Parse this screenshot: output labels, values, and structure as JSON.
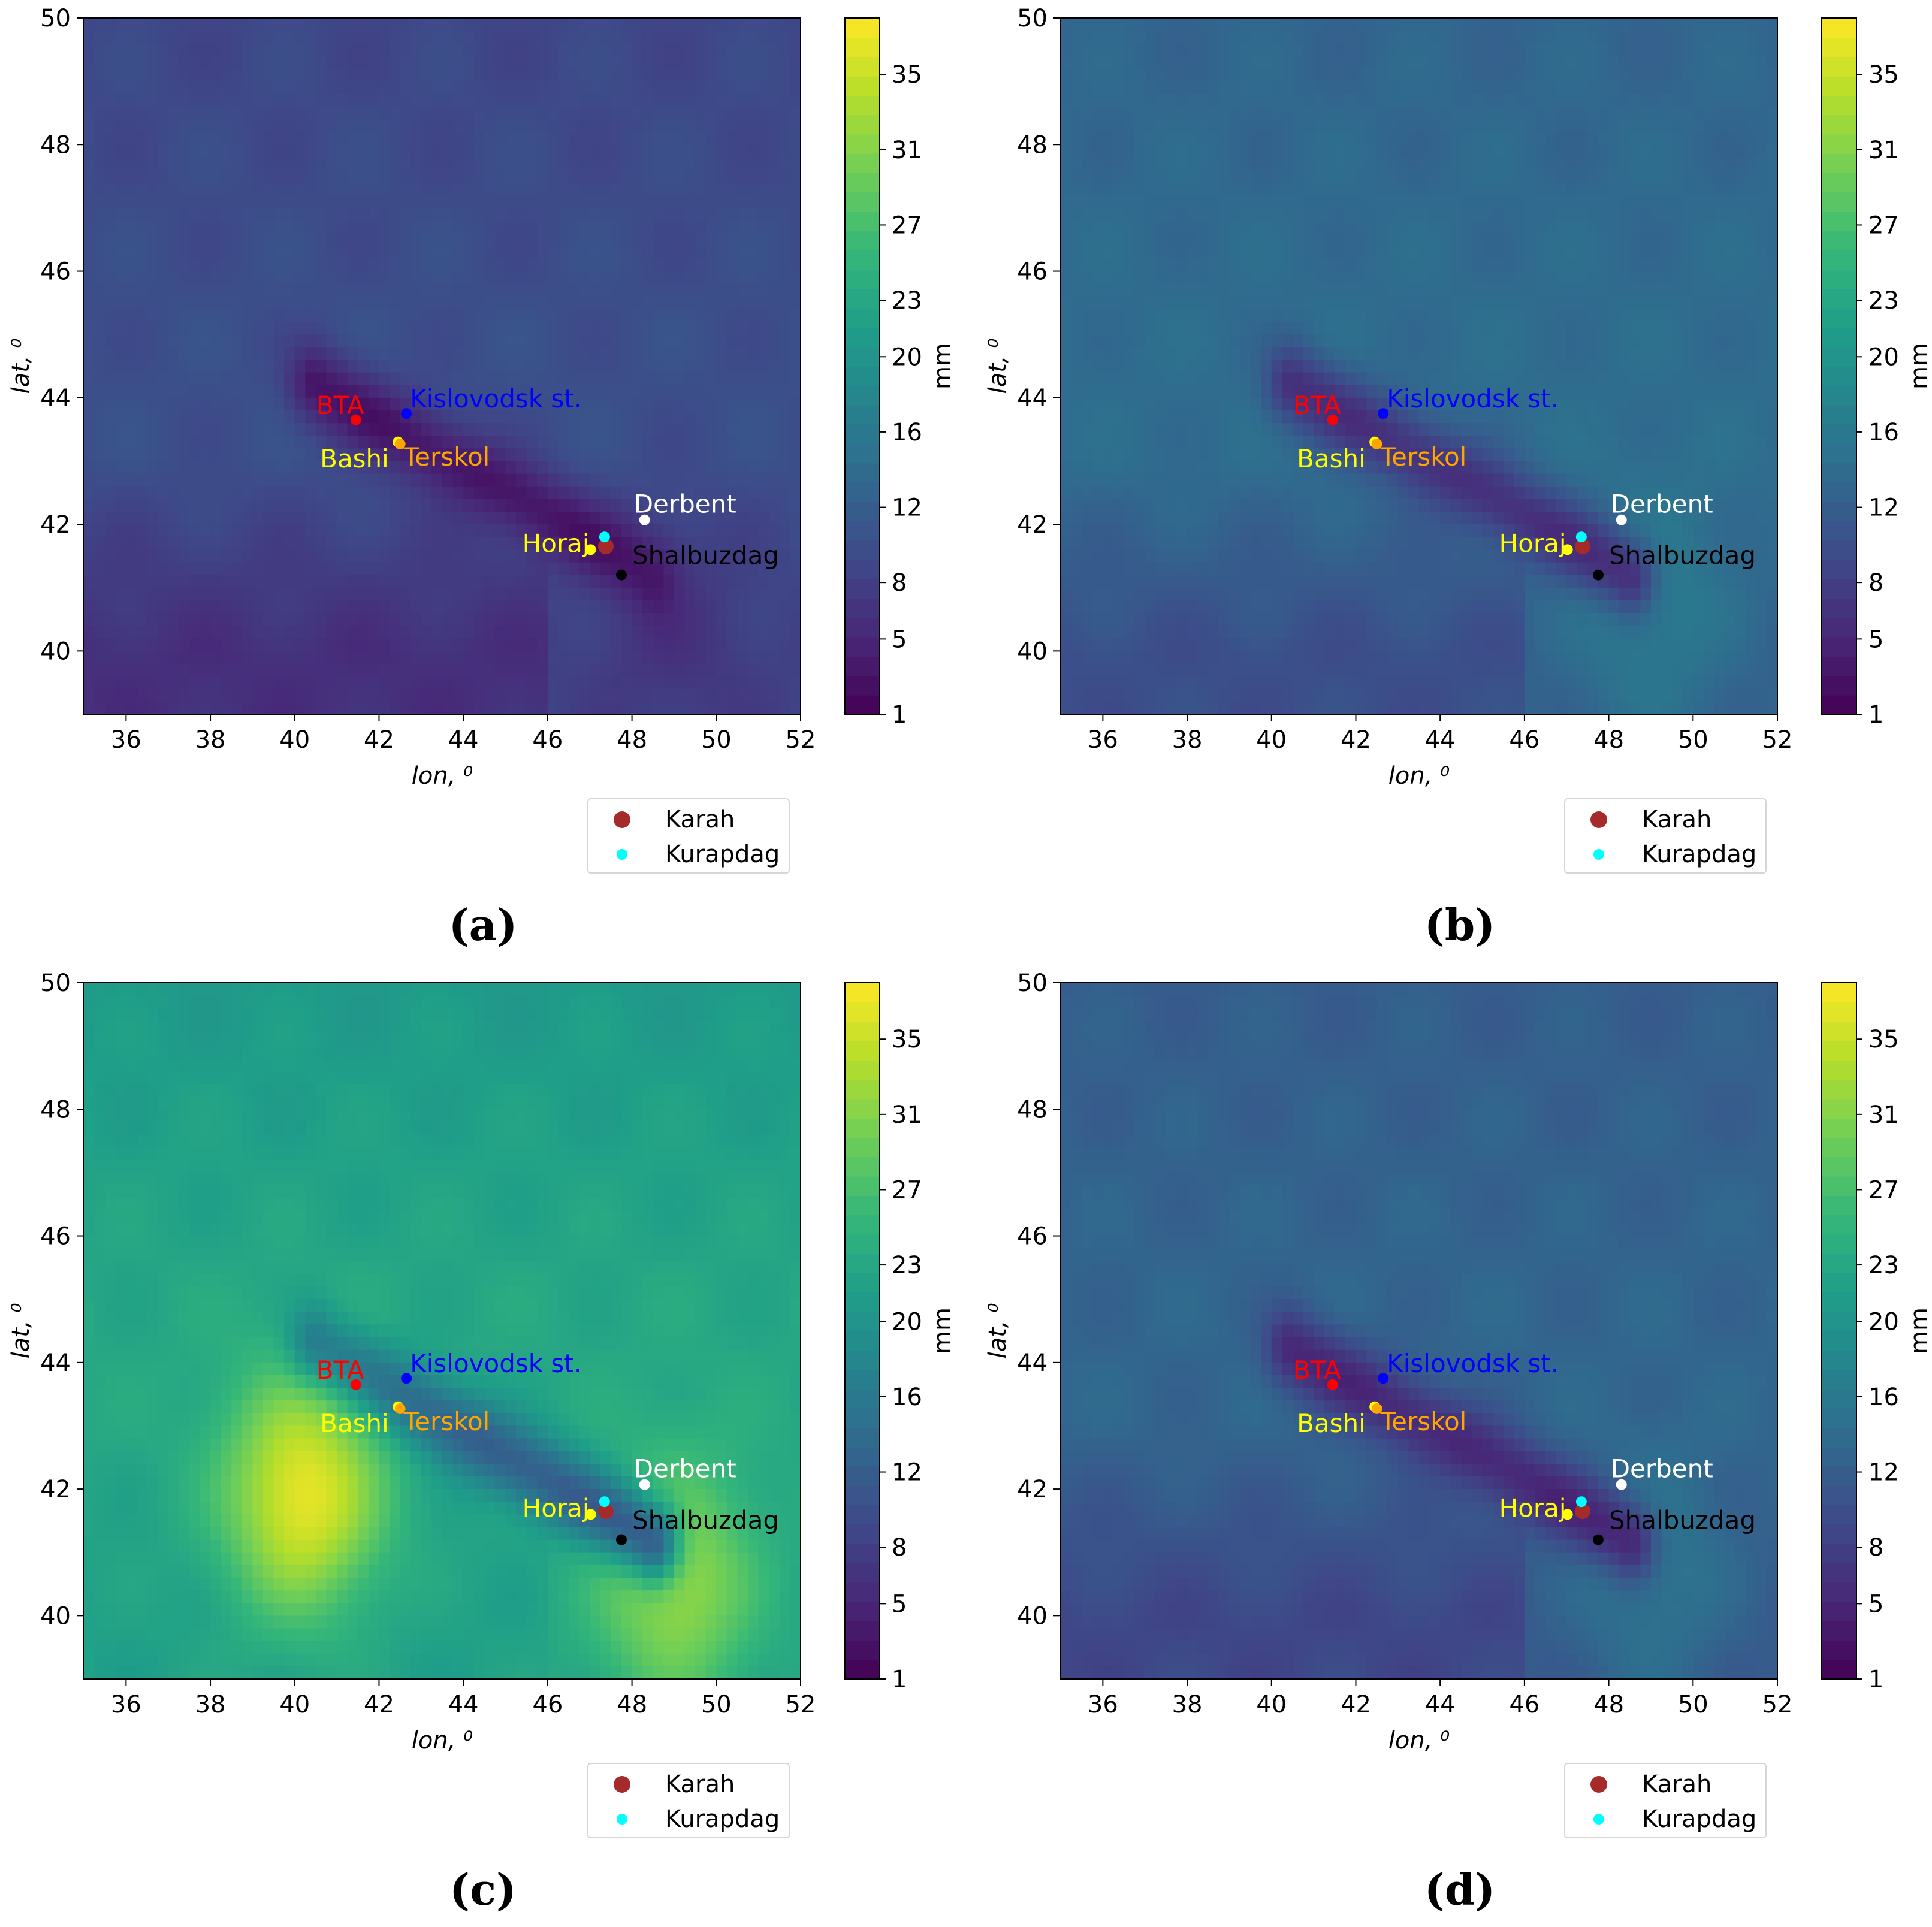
{
  "colors": {
    "viridis": [
      "#440154",
      "#482878",
      "#3e4989",
      "#31688e",
      "#26828e",
      "#1f9e89",
      "#35b779",
      "#6ece58",
      "#b5de2b",
      "#fde725"
    ],
    "sites": {
      "BTA": "#ff0000",
      "Kislovodsk st.": "#0000ff",
      "Bashi": "#ffff00",
      "Terskol": "#ffa500",
      "Derbent": "#ffffff",
      "Horaj": "#ffff00",
      "Shalbuzdag": "#000000",
      "Karah": "#a52a2a",
      "Kurapdag": "#00ffff"
    }
  },
  "chart_data": [
    {
      "id": "a",
      "type": "heatmap",
      "caption": "(a)",
      "xlabel": "lon, ⁰",
      "ylabel": "lat, ⁰",
      "xlim": [
        35,
        52
      ],
      "ylim": [
        39,
        50
      ],
      "xticks": [
        "36",
        "38",
        "40",
        "42",
        "44",
        "46",
        "48",
        "50",
        "52"
      ],
      "yticks": [
        "40",
        "42",
        "44",
        "46",
        "48",
        "50"
      ],
      "colorbar": {
        "label": "mm",
        "range": [
          1,
          38
        ],
        "ticks": [
          "1",
          "5",
          "8",
          "12",
          "16",
          "20",
          "23",
          "27",
          "31",
          "35"
        ]
      },
      "field": {
        "base": 10,
        "ridge": 3,
        "south": 6,
        "north": 9,
        "southeast": 8,
        "hotspot": null
      },
      "sites": [
        {
          "name": "BTA",
          "lon": 41.45,
          "lat": 43.65,
          "label": "BTA"
        },
        {
          "name": "Kislovodsk st.",
          "lon": 42.65,
          "lat": 43.75,
          "label": "Kislovodsk st."
        },
        {
          "name": "Bashi",
          "lon": 42.45,
          "lat": 43.3,
          "label": "Bashi"
        },
        {
          "name": "Terskol",
          "lon": 42.5,
          "lat": 43.27,
          "label": "Terskol"
        },
        {
          "name": "Derbent",
          "lon": 48.3,
          "lat": 42.07,
          "label": "Derbent"
        },
        {
          "name": "Horaj",
          "lon": 47.02,
          "lat": 41.6,
          "label": "Horaj"
        },
        {
          "name": "Shalbuzdag",
          "lon": 47.75,
          "lat": 41.2,
          "label": "Shalbuzdag"
        },
        {
          "name": "Karah",
          "lon": 47.38,
          "lat": 41.65,
          "label": null
        },
        {
          "name": "Kurapdag",
          "lon": 47.35,
          "lat": 41.8,
          "label": null
        }
      ],
      "legend": [
        "Karah",
        "Kurapdag"
      ]
    },
    {
      "id": "b",
      "type": "heatmap",
      "caption": "(b)",
      "xlabel": "lon, ⁰",
      "ylabel": "lat, ⁰",
      "xlim": [
        35,
        52
      ],
      "ylim": [
        39,
        50
      ],
      "xticks": [
        "36",
        "38",
        "40",
        "42",
        "44",
        "46",
        "48",
        "50",
        "52"
      ],
      "yticks": [
        "40",
        "42",
        "44",
        "46",
        "48",
        "50"
      ],
      "colorbar": {
        "label": "mm",
        "range": [
          1,
          38
        ],
        "ticks": [
          "1",
          "5",
          "8",
          "12",
          "16",
          "20",
          "23",
          "27",
          "31",
          "35"
        ]
      },
      "field": {
        "base": 14,
        "ridge": 6,
        "south": 10,
        "north": 13,
        "southeast": 18,
        "hotspot": null
      },
      "sites": [
        {
          "name": "BTA",
          "lon": 41.45,
          "lat": 43.65,
          "label": "BTA"
        },
        {
          "name": "Kislovodsk st.",
          "lon": 42.65,
          "lat": 43.75,
          "label": "Kislovodsk st."
        },
        {
          "name": "Bashi",
          "lon": 42.45,
          "lat": 43.3,
          "label": "Bashi"
        },
        {
          "name": "Terskol",
          "lon": 42.5,
          "lat": 43.27,
          "label": "Terskol"
        },
        {
          "name": "Derbent",
          "lon": 48.3,
          "lat": 42.07,
          "label": "Derbent"
        },
        {
          "name": "Horaj",
          "lon": 47.02,
          "lat": 41.6,
          "label": "Horaj"
        },
        {
          "name": "Shalbuzdag",
          "lon": 47.75,
          "lat": 41.2,
          "label": "Shalbuzdag"
        },
        {
          "name": "Karah",
          "lon": 47.38,
          "lat": 41.65,
          "label": null
        },
        {
          "name": "Kurapdag",
          "lon": 47.35,
          "lat": 41.8,
          "label": null
        }
      ],
      "legend": [
        "Karah",
        "Kurapdag"
      ]
    },
    {
      "id": "c",
      "type": "heatmap",
      "caption": "(c)",
      "xlabel": "lon, ⁰",
      "ylabel": "lat, ⁰",
      "xlim": [
        35,
        52
      ],
      "ylim": [
        39,
        50
      ],
      "xticks": [
        "36",
        "38",
        "40",
        "42",
        "44",
        "46",
        "48",
        "50",
        "52"
      ],
      "yticks": [
        "40",
        "42",
        "44",
        "46",
        "48",
        "50"
      ],
      "colorbar": {
        "label": "mm",
        "range": [
          1,
          38
        ],
        "ticks": [
          "1",
          "5",
          "8",
          "12",
          "16",
          "20",
          "23",
          "27",
          "31",
          "35"
        ]
      },
      "field": {
        "base": 23,
        "ridge": 12,
        "south": 22,
        "north": 21,
        "southeast": 33,
        "hotspot": 37
      },
      "sites": [
        {
          "name": "BTA",
          "lon": 41.45,
          "lat": 43.65,
          "label": "BTA"
        },
        {
          "name": "Kislovodsk st.",
          "lon": 42.65,
          "lat": 43.75,
          "label": "Kislovodsk st."
        },
        {
          "name": "Bashi",
          "lon": 42.45,
          "lat": 43.3,
          "label": "Bashi"
        },
        {
          "name": "Terskol",
          "lon": 42.5,
          "lat": 43.27,
          "label": "Terskol"
        },
        {
          "name": "Derbent",
          "lon": 48.3,
          "lat": 42.07,
          "label": "Derbent"
        },
        {
          "name": "Horaj",
          "lon": 47.02,
          "lat": 41.6,
          "label": "Horaj"
        },
        {
          "name": "Shalbuzdag",
          "lon": 47.75,
          "lat": 41.2,
          "label": "Shalbuzdag"
        },
        {
          "name": "Karah",
          "lon": 47.38,
          "lat": 41.65,
          "label": null
        },
        {
          "name": "Kurapdag",
          "lon": 47.35,
          "lat": 41.8,
          "label": null
        }
      ],
      "legend": [
        "Karah",
        "Kurapdag"
      ]
    },
    {
      "id": "d",
      "type": "heatmap",
      "caption": "(d)",
      "xlabel": "lon, ⁰",
      "ylabel": "lat, ⁰",
      "xlim": [
        35,
        52
      ],
      "ylim": [
        39,
        50
      ],
      "xticks": [
        "36",
        "38",
        "40",
        "42",
        "44",
        "46",
        "48",
        "50",
        "52"
      ],
      "yticks": [
        "40",
        "42",
        "44",
        "46",
        "48",
        "50"
      ],
      "colorbar": {
        "label": "mm",
        "range": [
          1,
          38
        ],
        "ticks": [
          "1",
          "5",
          "8",
          "12",
          "16",
          "20",
          "23",
          "27",
          "31",
          "35"
        ]
      },
      "field": {
        "base": 13,
        "ridge": 5,
        "south": 9,
        "north": 12,
        "southeast": 17,
        "hotspot": null
      },
      "sites": [
        {
          "name": "BTA",
          "lon": 41.45,
          "lat": 43.65,
          "label": "BTA"
        },
        {
          "name": "Kislovodsk st.",
          "lon": 42.65,
          "lat": 43.75,
          "label": "Kislovodsk st."
        },
        {
          "name": "Bashi",
          "lon": 42.45,
          "lat": 43.3,
          "label": "Bashi"
        },
        {
          "name": "Terskol",
          "lon": 42.5,
          "lat": 43.27,
          "label": "Terskol"
        },
        {
          "name": "Derbent",
          "lon": 48.3,
          "lat": 42.07,
          "label": "Derbent"
        },
        {
          "name": "Horaj",
          "lon": 47.02,
          "lat": 41.6,
          "label": "Horaj"
        },
        {
          "name": "Shalbuzdag",
          "lon": 47.75,
          "lat": 41.2,
          "label": "Shalbuzdag"
        },
        {
          "name": "Karah",
          "lon": 47.38,
          "lat": 41.65,
          "label": null
        },
        {
          "name": "Kurapdag",
          "lon": 47.35,
          "lat": 41.8,
          "label": null
        }
      ],
      "legend": [
        "Karah",
        "Kurapdag"
      ]
    }
  ]
}
